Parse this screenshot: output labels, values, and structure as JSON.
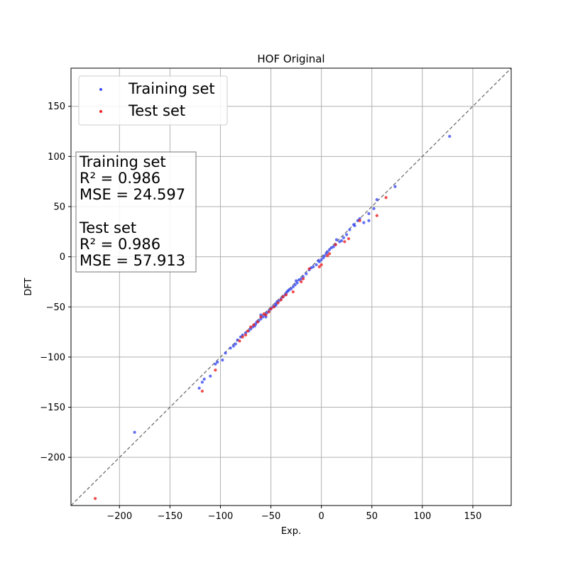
{
  "chart_data": {
    "type": "scatter",
    "title": "HOF Original",
    "xlabel": "Exp.",
    "ylabel": "DFT",
    "xlim": [
      -248,
      188
    ],
    "ylim": [
      -248,
      188
    ],
    "xticks": [
      -200,
      -150,
      -100,
      -50,
      0,
      50,
      100,
      150
    ],
    "yticks": [
      -200,
      -150,
      -100,
      -50,
      0,
      50,
      100,
      150
    ],
    "xtick_labels": [
      "−200",
      "−150",
      "−100",
      "−50",
      "0",
      "50",
      "100",
      "150"
    ],
    "ytick_labels": [
      "−200",
      "−150",
      "−100",
      "−50",
      "0",
      "50",
      "100",
      "150"
    ],
    "grid": true,
    "diagonal": true,
    "legend_position": "top-left",
    "colors": {
      "training": "#3b4cf0",
      "test": "#ee2222",
      "diagonal": "#666666",
      "grid": "#b0b0b0"
    },
    "series": [
      {
        "name": "Training set",
        "color": "#3b4cf0",
        "x": [
          127,
          73,
          55,
          52,
          47,
          47,
          42,
          38,
          36,
          33,
          32,
          28,
          25,
          22,
          20,
          18,
          15,
          14,
          12,
          10,
          8,
          6,
          5,
          3,
          2,
          0,
          -2,
          -3,
          -5,
          -8,
          -10,
          -12,
          -15,
          -18,
          -20,
          -22,
          -24,
          -26,
          -28,
          -30,
          -32,
          -33,
          -34,
          -36,
          -38,
          -40,
          -42,
          -44,
          -45,
          -46,
          -48,
          -50,
          -52,
          -54,
          -56,
          -58,
          -60,
          -62,
          -64,
          -65,
          -66,
          -68,
          -70,
          -72,
          -75,
          -78,
          -80,
          -83,
          -85,
          -87,
          -90,
          -95,
          -98,
          -103,
          -105,
          -110,
          -116,
          -118,
          -121,
          -185,
          -60,
          -55,
          -45,
          -35,
          -25
        ],
        "y": [
          120,
          70,
          57,
          48,
          43,
          36,
          34,
          38,
          36,
          31,
          32,
          27,
          22,
          19,
          16,
          15,
          17,
          12,
          10,
          9,
          7,
          5,
          3,
          1,
          -1,
          -3,
          -5,
          -4,
          -8,
          -10,
          -11,
          -13,
          -17,
          -20,
          -22,
          -23,
          -26,
          -28,
          -30,
          -32,
          -33,
          -34,
          -35,
          -38,
          -40,
          -42,
          -44,
          -45,
          -48,
          -49,
          -50,
          -52,
          -54,
          -56,
          -58,
          -60,
          -62,
          -64,
          -65,
          -67,
          -69,
          -70,
          -72,
          -74,
          -76,
          -78,
          -80,
          -83,
          -87,
          -89,
          -91,
          -96,
          -103,
          -105,
          -107,
          -119,
          -122,
          -125,
          -131,
          -175,
          -58,
          -60,
          -47,
          -37,
          -24
        ]
      },
      {
        "name": "Test set",
        "color": "#ee2222",
        "x": [
          64,
          55,
          38,
          27,
          23,
          14,
          8,
          6,
          0,
          -2,
          -12,
          -18,
          -20,
          -28,
          -35,
          -38,
          -40,
          -43,
          -47,
          -50,
          -52,
          -55,
          -57,
          -60,
          -63,
          -67,
          -70,
          -73,
          -75,
          -78,
          -81,
          -105,
          -118,
          -224
        ],
        "y": [
          59,
          41,
          36,
          18,
          15,
          12,
          3,
          1,
          -8,
          -10,
          -12,
          -22,
          -25,
          -35,
          -38,
          -40,
          -43,
          -46,
          -50,
          -52,
          -55,
          -58,
          -57,
          -60,
          -65,
          -68,
          -70,
          -74,
          -78,
          -80,
          -84,
          -113,
          -134,
          -241
        ]
      }
    ],
    "annotation": {
      "training_heading": "Training set",
      "training_r2": "R²    = 0.986",
      "training_mse": "MSE = 24.597",
      "test_heading": "Test set",
      "test_r2": "R²    = 0.986",
      "test_mse": "MSE = 57.913"
    }
  }
}
